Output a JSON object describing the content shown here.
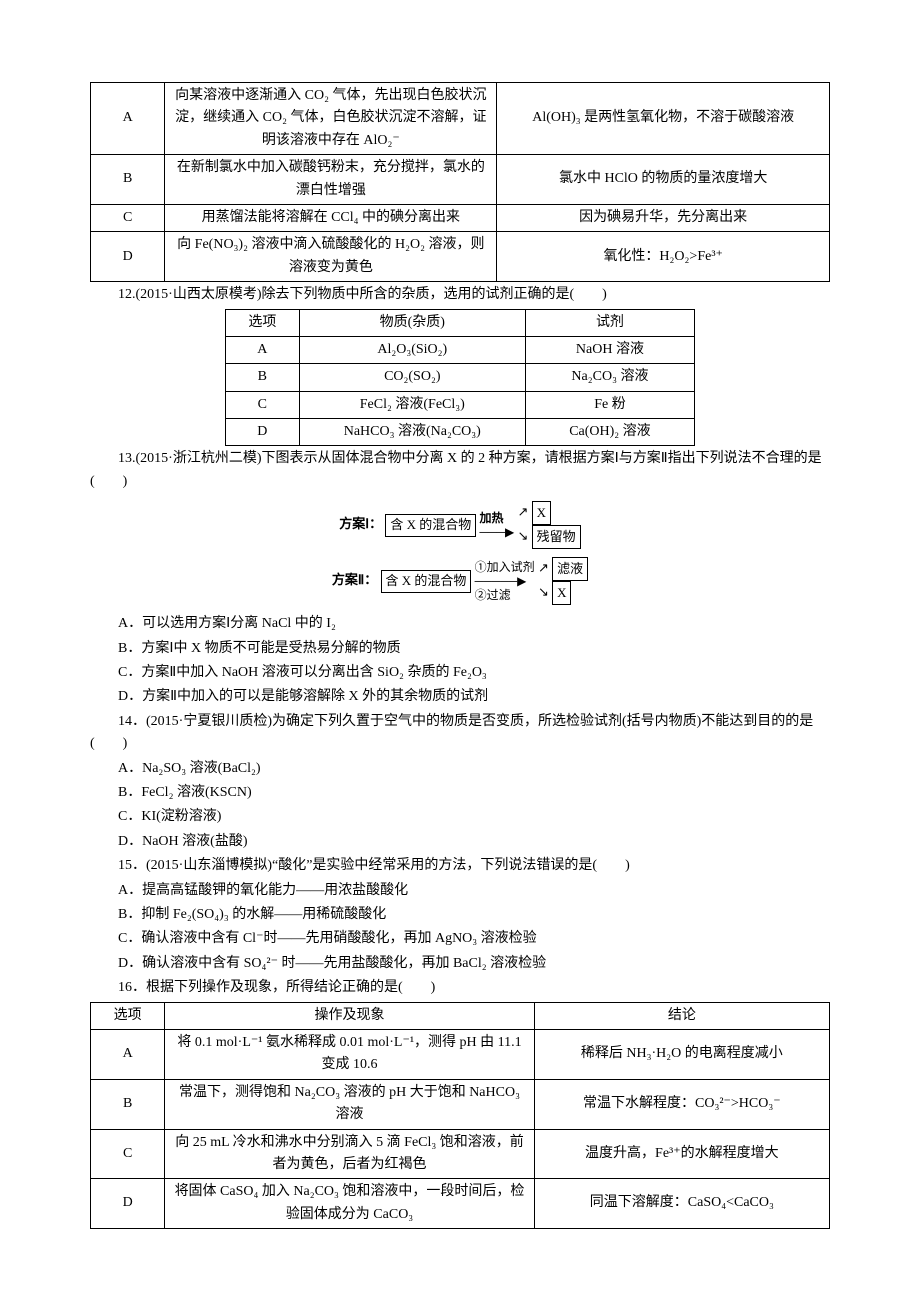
{
  "colors": {
    "text": "#000000",
    "bg": "#ffffff",
    "border": "#000000"
  },
  "fonts": {
    "body_family": "SimSun",
    "body_size_pt": 10.5
  },
  "table1": {
    "rows": [
      {
        "label": "A",
        "op": "向某溶液中逐渐通入 CO₂ 气体，先出现白色胶状沉淀，继续通入 CO₂ 气体，白色胶状沉淀不溶解，证明该溶液中存在 AlO₂⁻",
        "concl": "Al(OH)₃ 是两性氢氧化物，不溶于碳酸溶液"
      },
      {
        "label": "B",
        "op": "在新制氯水中加入碳酸钙粉末，充分搅拌，氯水的漂白性增强",
        "concl": "氯水中 HClO 的物质的量浓度增大"
      },
      {
        "label": "C",
        "op": "用蒸馏法能将溶解在 CCl₄ 中的碘分离出来",
        "concl": "因为碘易升华，先分离出来"
      },
      {
        "label": "D",
        "op": "向 Fe(NO₃)₂ 溶液中滴入硫酸酸化的 H₂O₂ 溶液，则溶液变为黄色",
        "concl": "氧化性：H₂O₂>Fe³⁺"
      }
    ]
  },
  "q12": {
    "stem": "12.(2015·山西太原模考)除去下列物质中所含的杂质，选用的试剂正确的是(　　)",
    "headers": [
      "选项",
      "物质(杂质)",
      "试剂"
    ],
    "rows": [
      {
        "label": "A",
        "mat": "Al₂O₃(SiO₂)",
        "re": "NaOH 溶液"
      },
      {
        "label": "B",
        "mat": "CO₂(SO₂)",
        "re": "Na₂CO₃ 溶液"
      },
      {
        "label": "C",
        "mat": "FeCl₂ 溶液(FeCl₃)",
        "re": "Fe 粉"
      },
      {
        "label": "D",
        "mat": "NaHCO₃ 溶液(Na₂CO₃)",
        "re": "Ca(OH)₂ 溶液"
      }
    ]
  },
  "q13": {
    "stem": "13.(2015·浙江杭州二模)下图表示从固体混合物中分离 X 的 2 种方案，请根据方案Ⅰ与方案Ⅱ指出下列说法不合理的是(　　)",
    "plan1_label": "方案Ⅰ：",
    "plan1_box": "含 X 的混合物",
    "plan1_op": "加热",
    "plan1_out_top": "X",
    "plan1_out_bottom": "残留物",
    "plan2_label": "方案Ⅱ：",
    "plan2_box": "含 X 的混合物",
    "plan2_ops1": "①加入试剂",
    "plan2_ops2": "②过滤",
    "plan2_out_top": "滤液",
    "plan2_out_bottom": "X",
    "opts": {
      "A": "A．可以选用方案Ⅰ分离 NaCl 中的 I₂",
      "B": "B．方案Ⅰ中 X 物质不可能是受热易分解的物质",
      "C": "C．方案Ⅱ中加入 NaOH 溶液可以分离出含 SiO₂ 杂质的 Fe₂O₃",
      "D": "D．方案Ⅱ中加入的可以是能够溶解除 X 外的其余物质的试剂"
    }
  },
  "q14": {
    "stem": "14．(2015·宁夏银川质检)为确定下列久置于空气中的物质是否变质，所选检验试剂(括号内物质)不能达到目的的是(　　)",
    "opts": {
      "A": "A．Na₂SO₃ 溶液(BaCl₂)",
      "B": "B．FeCl₂ 溶液(KSCN)",
      "C": "C．KI(淀粉溶液)",
      "D": "D．NaOH 溶液(盐酸)"
    }
  },
  "q15": {
    "stem": "15．(2015·山东淄博模拟)“酸化”是实验中经常采用的方法，下列说法错误的是(　　)",
    "opts": {
      "A": "A．提高高锰酸钾的氧化能力——用浓盐酸酸化",
      "B": "B．抑制 Fe₂(SO₄)₃ 的水解——用稀硫酸酸化",
      "C": "C．确认溶液中含有 Cl⁻时——先用硝酸酸化，再加 AgNO₃ 溶液检验",
      "D": "D．确认溶液中含有 SO₄²⁻ 时——先用盐酸酸化，再加 BaCl₂ 溶液检验"
    }
  },
  "q16": {
    "stem": "16．根据下列操作及现象，所得结论正确的是(　　)",
    "headers": [
      "选项",
      "操作及现象",
      "结论"
    ],
    "rows": [
      {
        "label": "A",
        "op": "将 0.1 mol·L⁻¹ 氨水稀释成 0.01 mol·L⁻¹，测得 pH 由 11.1 变成 10.6",
        "concl": "稀释后 NH₃·H₂O 的电离程度减小"
      },
      {
        "label": "B",
        "op": "常温下，测得饱和 Na₂CO₃ 溶液的 pH 大于饱和 NaHCO₃ 溶液",
        "concl": "常温下水解程度：CO₃²⁻>HCO₃⁻"
      },
      {
        "label": "C",
        "op": "向 25 mL 冷水和沸水中分别滴入 5 滴 FeCl₃ 饱和溶液，前者为黄色，后者为红褐色",
        "concl": "温度升高，Fe³⁺的水解程度增大"
      },
      {
        "label": "D",
        "op": "将固体 CaSO₄ 加入 Na₂CO₃ 饱和溶液中，一段时间后，检验固体成分为 CaCO₃",
        "concl": "同温下溶解度：CaSO₄<CaCO₃"
      }
    ]
  }
}
